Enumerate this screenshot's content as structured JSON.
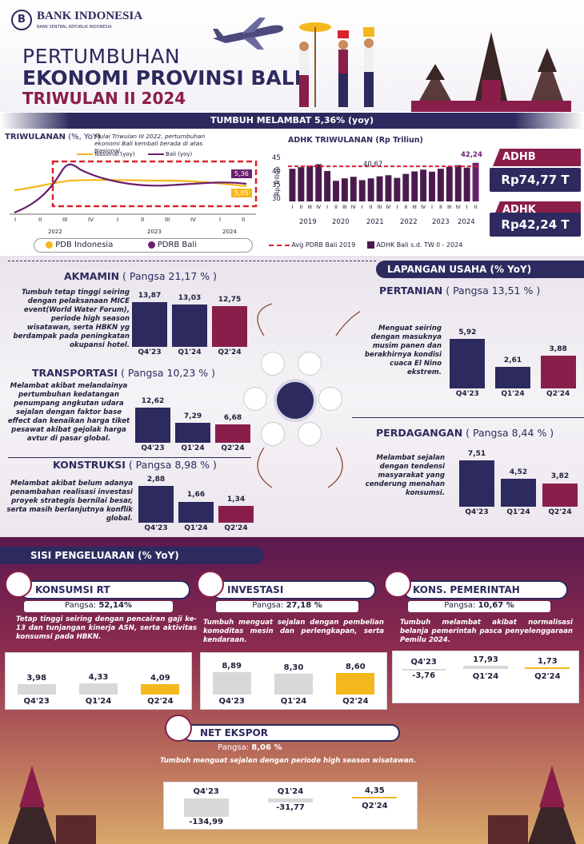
{
  "header": {
    "org": "BANK INDONESIA",
    "org_sub": "BANK SENTRAL REPUBLIK INDONESIA",
    "title_1": "PERTUMBUHAN",
    "title_2": "EKONOMI PROVINSI BALI",
    "title_3": "TRIWULAN II 2024"
  },
  "growth_band": "TUMBUH MELAMBAT  5,36% (yoy)",
  "quarterly": {
    "title": "TRIWULANAN",
    "unit": " (%, YoY)",
    "note": "Mulai Triwulan III 2022, pertumbuhan ekonomi Bali kembali berada di atas Nasional.",
    "legend_nasional_line": "Nasional (yoy)",
    "legend_bali_line": "Bali (yoy)",
    "val_bali": "5,36",
    "val_nasional": "5,05",
    "ticks": [
      "I",
      "II",
      "III",
      "IV",
      "I",
      "II",
      "III",
      "IV",
      "I",
      "II"
    ],
    "years": [
      "2022",
      "2023",
      "2024"
    ],
    "legend_pdb": "PDB Indonesia",
    "legend_pdrb": "PDRB Bali"
  },
  "adhk_chart": {
    "title": "ADHK TRIWULANAN (Rp Triliun)",
    "ylabel": "Rp Triliun",
    "yticks": [
      "45",
      "40",
      "35",
      "30"
    ],
    "avg_label": "40,67",
    "last_label": "42,24",
    "years": [
      "2019",
      "2020",
      "2021",
      "2022",
      "2023",
      "2024"
    ],
    "legend_avg": "Avg PDRB Bali 2019",
    "legend_adhk": "ADHK Bali s.d. TW II - 2024"
  },
  "chart_data": {
    "type": "bar",
    "ylim": [
      25,
      45
    ],
    "values": [
      39.6,
      40.3,
      41.0,
      41.6,
      38.6,
      34.2,
      35.3,
      36.0,
      34.5,
      35.3,
      36.2,
      36.7,
      35.5,
      37.3,
      38.4,
      39.2,
      38.3,
      39.6,
      40.5,
      41.2,
      40.1,
      42.24
    ],
    "reference": 40.67
  },
  "adhb": {
    "label": "ADHB",
    "value": "Rp74,77 T"
  },
  "adhk": {
    "label": "ADHK",
    "value": "Rp42,24 T"
  },
  "lapangan_title": "LAPANGAN USAHA (% YoY)",
  "quarters": [
    "Q4'23",
    "Q1'24",
    "Q2'24"
  ],
  "akmamin": {
    "name": "AKMAMIN",
    "share": " ( Pangsa 21,17 % )",
    "desc": "Tumbuh tetap tinggi seiring dengan pelaksanaan MICE event(World Water Forum), periode high season wisatawan, serta HBKN yg berdampak pada peningkatan okupansi hotel.",
    "labels": [
      "13,87",
      "13,03",
      "12,75"
    ],
    "values": [
      13.87,
      13.03,
      12.75
    ]
  },
  "transportasi": {
    "name": "TRANSPORTASI",
    "share": " ( Pangsa 10,23 % )",
    "desc": "Melambat akibat melandainya pertumbuhan kedatangan penumpang angkutan udara sejalan dengan faktor base effect dan kenaikan harga tiket pesawat akibat gejolak harga avtur di pasar global.",
    "labels": [
      "12,62",
      "7,29",
      "6,68"
    ],
    "values": [
      12.62,
      7.29,
      6.68
    ]
  },
  "konstruksi": {
    "name": "KONSTRUKSI",
    "share": " ( Pangsa 8,98 % )",
    "desc": "Melambat akibat belum adanya penambahan realisasi investasi proyek strategis bernilai besar, serta masih berlanjutnya konflik global.",
    "labels": [
      "2,88",
      "1,66",
      "1,34"
    ],
    "values": [
      2.88,
      1.66,
      1.34
    ]
  },
  "pertanian": {
    "name": "PERTANIAN",
    "share": " ( Pangsa 13,51 % )",
    "desc": "Menguat seiring dengan masuknya musim panen dan berakhirnya kondisi cuaca El Nino ekstrem.",
    "labels": [
      "5,92",
      "2,61",
      "3,88"
    ],
    "values": [
      5.92,
      2.61,
      3.88
    ]
  },
  "perdagangan": {
    "name": "PERDAGANGAN",
    "share": " ( Pangsa 8,44 % )",
    "desc": "Melambat sejalan dengan tendensi masyarakat yang cenderung menahan konsumsi.",
    "labels": [
      "7,51",
      "4,52",
      "3,82"
    ],
    "values": [
      7.51,
      4.52,
      3.82
    ]
  },
  "pengeluaran_title": "SISI PENGELUARAN (% YoY)",
  "konsumsi": {
    "name": "KONSUMSI RT",
    "share_label": "Pangsa:",
    "share": "52,14%",
    "desc": "Tetap tinggi seiring dengan pencairan gaji ke-13 dan tunjangan kinerja ASN, serta aktivitas konsumsi pada HBKN.",
    "labels": [
      "3,98",
      "4,33",
      "4,09"
    ],
    "values": [
      3.98,
      4.33,
      4.09
    ]
  },
  "investasi": {
    "name": "INVESTASI",
    "share_label": "Pangsa:",
    "share": "27,18 %",
    "desc": "Tumbuh menguat sejalan dengan pembelian komoditas mesin dan perlengkapan, serta kendaraan.",
    "labels": [
      "8,89",
      "8,30",
      "8,60"
    ],
    "values": [
      8.89,
      8.3,
      8.6
    ]
  },
  "pemerintah": {
    "name": "KONS. PEMERINTAH",
    "share_label": "Pangsa:",
    "share": "10,67 %",
    "desc": "Tumbuh melambat akibat normalisasi belanja pemerintah pasca penyelenggaraan Pemilu 2024.",
    "labels": [
      "-3,76",
      "17,93",
      "1,73"
    ],
    "values": [
      -3.76,
      17.93,
      1.73
    ]
  },
  "ekspor": {
    "name": "NET EKSPOR",
    "share_label": "Pangsa:",
    "share": "8,06 %",
    "desc": "Tumbuh menguat sejalan dengan periode high season wisatawan.",
    "labels": [
      "-134,99",
      "-31,77",
      "4,35"
    ],
    "values": [
      -134.99,
      -31.77,
      4.35
    ]
  },
  "colors": {
    "navy": "#2c2a5e",
    "maroon": "#8a1e4a",
    "red": "#d9232e",
    "yellow": "#f5b81c",
    "grey": "#d8d8d8"
  }
}
